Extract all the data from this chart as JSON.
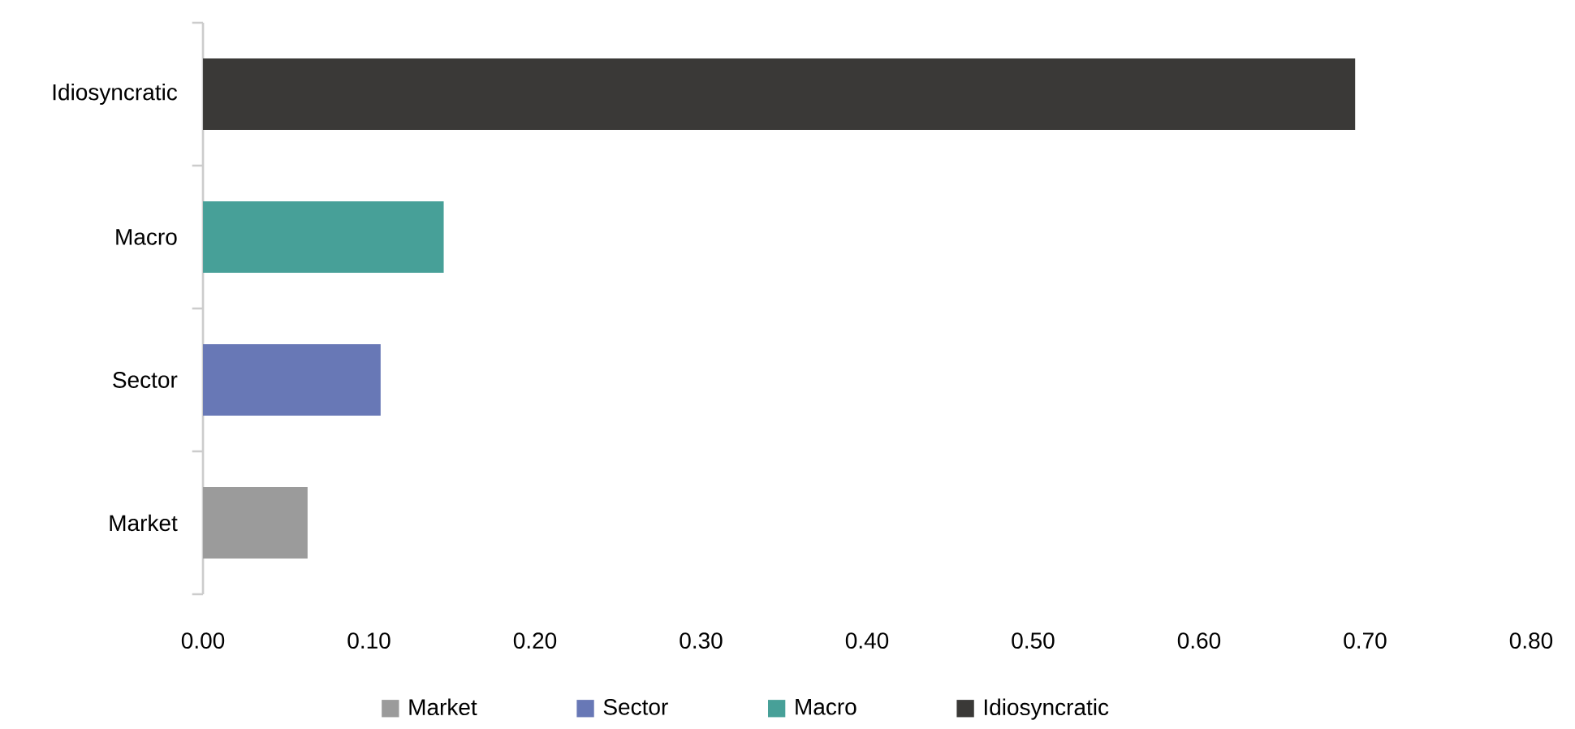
{
  "chart_data": {
    "type": "bar",
    "orientation": "horizontal",
    "categories": [
      "Idiosyncratic",
      "Macro",
      "Sector",
      "Market"
    ],
    "series": [
      {
        "name": "Market",
        "color": "#9b9b9b",
        "values": [
          null,
          null,
          null,
          0.063
        ]
      },
      {
        "name": "Sector",
        "color": "#6878b6",
        "values": [
          null,
          null,
          0.107,
          null
        ]
      },
      {
        "name": "Macro",
        "color": "#47a098",
        "values": [
          null,
          0.145,
          null,
          null
        ]
      },
      {
        "name": "Idiosyncratic",
        "color": "#3a3937",
        "values": [
          0.694,
          null,
          null,
          null
        ]
      }
    ],
    "xlim": [
      0,
      0.8
    ],
    "xticks": [
      {
        "value": 0,
        "label": "0.00"
      },
      {
        "value": 0.1,
        "label": "0.10"
      },
      {
        "value": 0.2,
        "label": "0.20"
      },
      {
        "value": 0.3,
        "label": "0.30"
      },
      {
        "value": 0.4,
        "label": "0.40"
      },
      {
        "value": 0.5,
        "label": "0.50"
      },
      {
        "value": 0.6,
        "label": "0.60"
      },
      {
        "value": 0.7,
        "label": "0.70"
      },
      {
        "value": 0.8,
        "label": "0.80"
      }
    ],
    "legend": "bottom"
  }
}
